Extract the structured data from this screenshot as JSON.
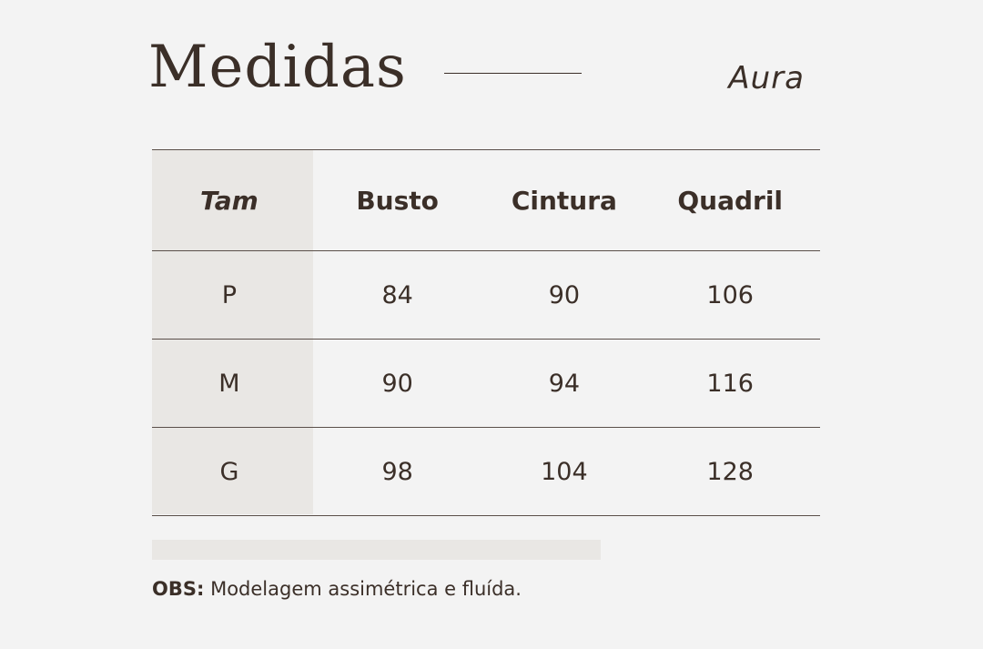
{
  "header": {
    "title": "Medidas",
    "subtitle": "Aura"
  },
  "table": {
    "columns": [
      "Tam",
      "Busto",
      "Cintura",
      "Quadril"
    ],
    "rows": [
      [
        "P",
        "84",
        "90",
        "106"
      ],
      [
        "M",
        "90",
        "94",
        "116"
      ],
      [
        "G",
        "98",
        "104",
        "128"
      ]
    ]
  },
  "note": {
    "label": "OBS:",
    "text": "Modelagem assimétrica e fluída."
  },
  "colors": {
    "background": "#f3f3f3",
    "text": "#3b2f28",
    "accent_fill": "#e9e7e4"
  }
}
